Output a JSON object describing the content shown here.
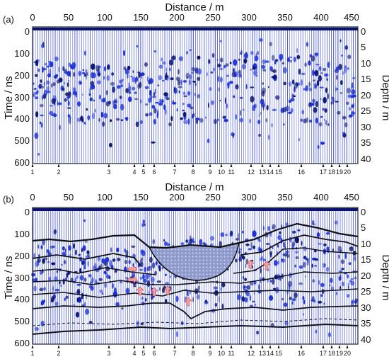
{
  "figure": {
    "panels": [
      {
        "label": "(a)",
        "x_axis": {
          "title": "Distance / m",
          "ticks": [
            "0",
            "50",
            "100",
            "150",
            "200",
            "250",
            "300",
            "350",
            "400",
            "450"
          ]
        },
        "y_left": {
          "title": "Time / ns",
          "ticks": [
            "0",
            "100",
            "200",
            "300",
            "400",
            "500",
            "600"
          ]
        },
        "y_right": {
          "title": "Depth / m",
          "ticks": [
            "0",
            "5",
            "10",
            "15",
            "20",
            "25",
            "30",
            "35",
            "40"
          ]
        },
        "markers": [
          "1",
          "2",
          "3",
          "4",
          "5",
          "6",
          "7",
          "8",
          "9",
          "10",
          "11",
          "12",
          "13",
          "14",
          "15",
          "16",
          "17",
          "18",
          "19",
          "20"
        ]
      },
      {
        "label": "(b)",
        "x_axis": {
          "title": "Distance / m",
          "ticks": [
            "0",
            "50",
            "100",
            "150",
            "200",
            "250",
            "300",
            "350",
            "400",
            "450"
          ]
        },
        "y_left": {
          "title": "Time / ns",
          "ticks": [
            "0",
            "100",
            "200",
            "300",
            "400",
            "500",
            "600"
          ]
        },
        "y_right": {
          "title": "Depth / m",
          "ticks": [
            "0",
            "5",
            "10",
            "15",
            "20",
            "25",
            "30",
            "35",
            "40"
          ]
        },
        "markers": [
          "1",
          "2",
          "3",
          "4",
          "5",
          "6",
          "7",
          "8",
          "9",
          "10",
          "11",
          "12",
          "13",
          "14",
          "15",
          "16",
          "17",
          "18",
          "19",
          "20"
        ]
      }
    ],
    "colors": {
      "trace": "#1a2fd6",
      "trace_dark": "#0a1470",
      "background": "#ffffff",
      "interpretation": "#111111",
      "arrow": "#f4a0a0",
      "fill": "#8f9acc"
    }
  }
}
